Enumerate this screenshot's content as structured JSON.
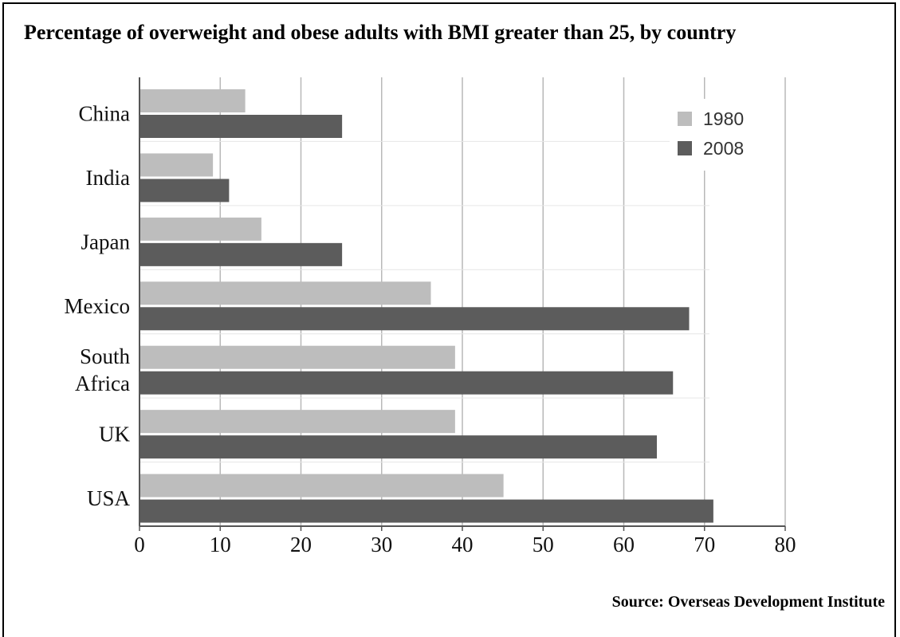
{
  "chart_data": {
    "type": "bar",
    "orientation": "horizontal",
    "title": "Percentage of overweight and obese adults with BMI greater than 25, by country",
    "source": "Source: Overseas Development Institute",
    "categories": [
      "China",
      "India",
      "Japan",
      "Mexico",
      "South Africa",
      "UK",
      "USA"
    ],
    "category_lines": [
      [
        "China"
      ],
      [
        "India"
      ],
      [
        "Japan"
      ],
      [
        "Mexico"
      ],
      [
        "South",
        "Africa"
      ],
      [
        "UK"
      ],
      [
        "USA"
      ]
    ],
    "series": [
      {
        "name": "1980",
        "values": [
          13,
          9,
          15,
          36,
          39,
          39,
          45
        ],
        "color": "#bdbdbd"
      },
      {
        "name": "2008",
        "values": [
          25,
          11,
          25,
          68,
          66,
          64,
          71
        ],
        "color": "#5c5c5c"
      }
    ],
    "xlim": [
      0,
      80
    ],
    "xticks": [
      0,
      10,
      20,
      30,
      40,
      50,
      60,
      70,
      80
    ],
    "grid": "vertical",
    "legend": "top-right",
    "xlabel": "",
    "ylabel": ""
  }
}
